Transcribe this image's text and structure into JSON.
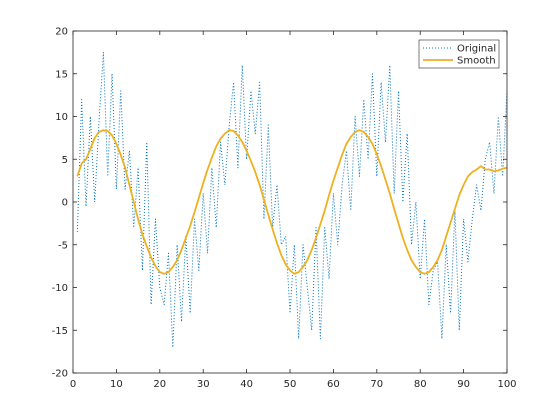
{
  "chart_data": {
    "type": "line",
    "title": "",
    "xlabel": "",
    "ylabel": "",
    "xlim": [
      0,
      100
    ],
    "ylim": [
      -20,
      20
    ],
    "xticks": [
      0,
      10,
      20,
      30,
      40,
      50,
      60,
      70,
      80,
      90,
      100
    ],
    "yticks": [
      -20,
      -15,
      -10,
      -5,
      0,
      5,
      10,
      15,
      20
    ],
    "grid": false,
    "legend_position": "top-right",
    "series": [
      {
        "name": "Original",
        "color": "#0072BD",
        "style": "dotted",
        "x": [
          1,
          2,
          3,
          4,
          5,
          6,
          7,
          8,
          9,
          10,
          11,
          12,
          13,
          14,
          15,
          16,
          17,
          18,
          19,
          20,
          21,
          22,
          23,
          24,
          25,
          26,
          27,
          28,
          29,
          30,
          31,
          32,
          33,
          34,
          35,
          36,
          37,
          38,
          39,
          40,
          41,
          42,
          43,
          44,
          45,
          46,
          47,
          48,
          49,
          50,
          51,
          52,
          53,
          54,
          55,
          56,
          57,
          58,
          59,
          60,
          61,
          62,
          63,
          64,
          65,
          66,
          67,
          68,
          69,
          70,
          71,
          72,
          73,
          74,
          75,
          76,
          77,
          78,
          79,
          80,
          81,
          82,
          83,
          84,
          85,
          86,
          87,
          88,
          89,
          90,
          91,
          92,
          93,
          94,
          95,
          96,
          97,
          98,
          99,
          100
        ],
        "y": [
          -3.5,
          12,
          -0.5,
          10,
          0,
          9.5,
          17.5,
          3,
          15,
          1.5,
          13,
          1.5,
          6,
          -3,
          4,
          -8,
          7,
          -12,
          -2,
          -10,
          -12,
          -6,
          -17,
          -5,
          -14,
          -4,
          -13,
          -2,
          -8,
          1,
          -6,
          4,
          -3,
          7,
          2,
          9,
          14,
          4,
          16,
          5,
          13,
          8,
          14,
          -2,
          9,
          -3,
          2,
          -5,
          -4,
          -13,
          -5,
          -16,
          -5,
          -10,
          -15,
          -3,
          -16,
          -3,
          -9,
          1,
          -5,
          2,
          6,
          -1,
          10,
          3,
          12,
          5,
          15,
          3,
          14,
          7,
          16,
          1,
          13,
          0,
          8,
          -5,
          0,
          -9,
          -2,
          -12,
          -8,
          -7,
          -16,
          -5,
          -13,
          -1,
          -15,
          -2,
          -7,
          -2,
          2,
          -1,
          5,
          7,
          1,
          10,
          3,
          13
        ]
      },
      {
        "name": "Smooth",
        "color": "#EDB120",
        "style": "solid",
        "x": [
          1,
          2,
          3,
          4,
          5,
          6,
          7,
          8,
          9,
          10,
          11,
          12,
          13,
          14,
          15,
          16,
          17,
          18,
          19,
          20,
          21,
          22,
          23,
          24,
          25,
          26,
          27,
          28,
          29,
          30,
          31,
          32,
          33,
          34,
          35,
          36,
          37,
          38,
          39,
          40,
          41,
          42,
          43,
          44,
          45,
          46,
          47,
          48,
          49,
          50,
          51,
          52,
          53,
          54,
          55,
          56,
          57,
          58,
          59,
          60,
          61,
          62,
          63,
          64,
          65,
          66,
          67,
          68,
          69,
          70,
          71,
          72,
          73,
          74,
          75,
          76,
          77,
          78,
          79,
          80,
          81,
          82,
          83,
          84,
          85,
          86,
          87,
          88,
          89,
          90,
          91,
          92,
          93,
          94,
          95,
          96,
          97,
          98,
          99,
          100
        ],
        "y": [
          3,
          4.5,
          5,
          6.2,
          7.5,
          8.2,
          8.4,
          8.3,
          7.8,
          6.8,
          5.5,
          4,
          2,
          0,
          -2,
          -3.8,
          -5.2,
          -6.5,
          -7.5,
          -8.2,
          -8.4,
          -8.2,
          -7.6,
          -6.8,
          -5.6,
          -4.2,
          -2.8,
          -1.2,
          0.5,
          2.2,
          3.8,
          5.2,
          6.5,
          7.4,
          8,
          8.4,
          8.3,
          7.8,
          7,
          6,
          4.8,
          3.5,
          2,
          0.3,
          -1.5,
          -3.2,
          -4.8,
          -6.2,
          -7.3,
          -8,
          -8.4,
          -8.2,
          -7.6,
          -6.8,
          -5.6,
          -4.2,
          -2.6,
          -1,
          0.8,
          2.5,
          4,
          5.5,
          6.8,
          7.6,
          8.2,
          8.4,
          8.2,
          7.6,
          6.8,
          5.6,
          4.2,
          2.6,
          1,
          -0.8,
          -2.5,
          -4.2,
          -5.6,
          -6.8,
          -7.6,
          -8.2,
          -8.4,
          -8.2,
          -7.6,
          -6.8,
          -5.6,
          -4,
          -2.4,
          -0.8,
          0.8,
          2,
          3,
          3.5,
          3.8,
          4.2,
          3.8,
          3.8,
          3.6,
          3.7,
          3.9,
          4
        ]
      }
    ]
  }
}
